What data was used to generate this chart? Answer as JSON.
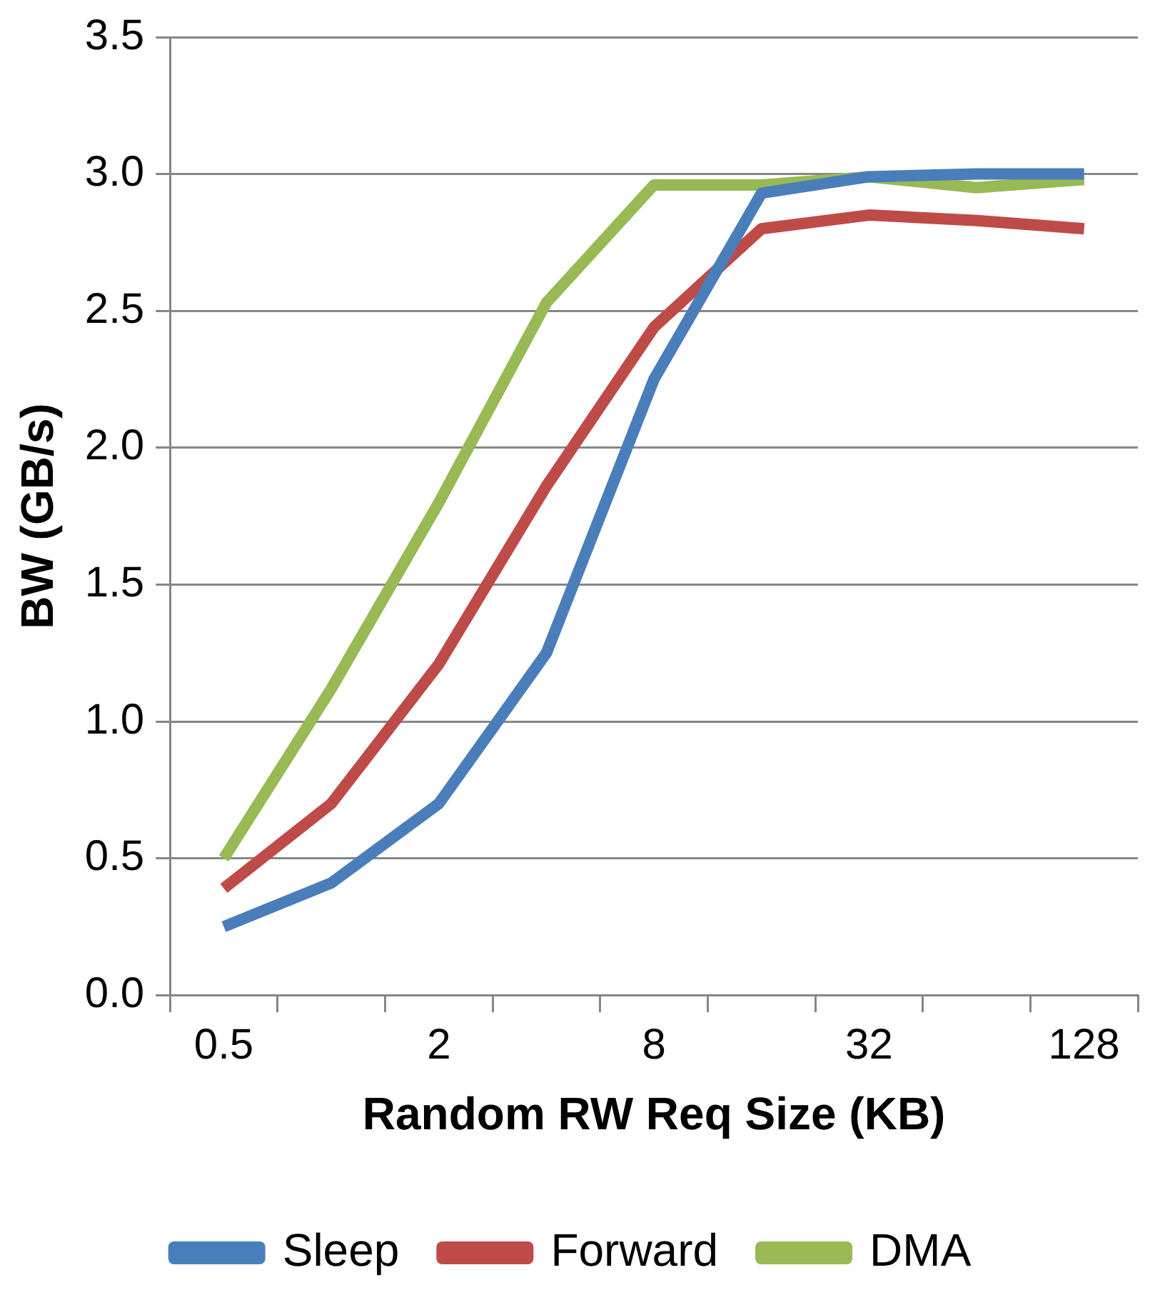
{
  "chart_data": {
    "type": "line",
    "xlabel": "Random RW Req Size (KB)",
    "ylabel": "BW (GB/s)",
    "categories": [
      "0.5",
      null,
      "2",
      null,
      "8",
      null,
      "32",
      null,
      "128"
    ],
    "series": [
      {
        "name": "Sleep",
        "color": "#4a7ebb",
        "values": [
          0.25,
          0.41,
          0.7,
          1.25,
          2.25,
          2.93,
          2.99,
          3.0,
          3.0
        ]
      },
      {
        "name": "Forward",
        "color": "#be4b48",
        "values": [
          0.39,
          0.7,
          1.21,
          1.86,
          2.44,
          2.8,
          2.85,
          2.83,
          2.8
        ]
      },
      {
        "name": "DMA",
        "color": "#98b954",
        "values": [
          0.5,
          1.12,
          1.8,
          2.53,
          2.96,
          2.96,
          2.99,
          2.95,
          2.98
        ]
      }
    ],
    "ylim": [
      0,
      3.5
    ],
    "yticks": [
      {
        "value": 0,
        "label": "0.0"
      },
      {
        "value": 0.5,
        "label": "0.5"
      },
      {
        "value": 1,
        "label": "1.0"
      },
      {
        "value": 1.5,
        "label": "1.5"
      },
      {
        "value": 2,
        "label": "2.0"
      },
      {
        "value": 2.5,
        "label": "2.5"
      },
      {
        "value": 3,
        "label": "3.0"
      },
      {
        "value": 3.5,
        "label": "3.5"
      }
    ],
    "grid": "y",
    "legend": "bottom",
    "marker": "none",
    "line_style": "solid"
  }
}
